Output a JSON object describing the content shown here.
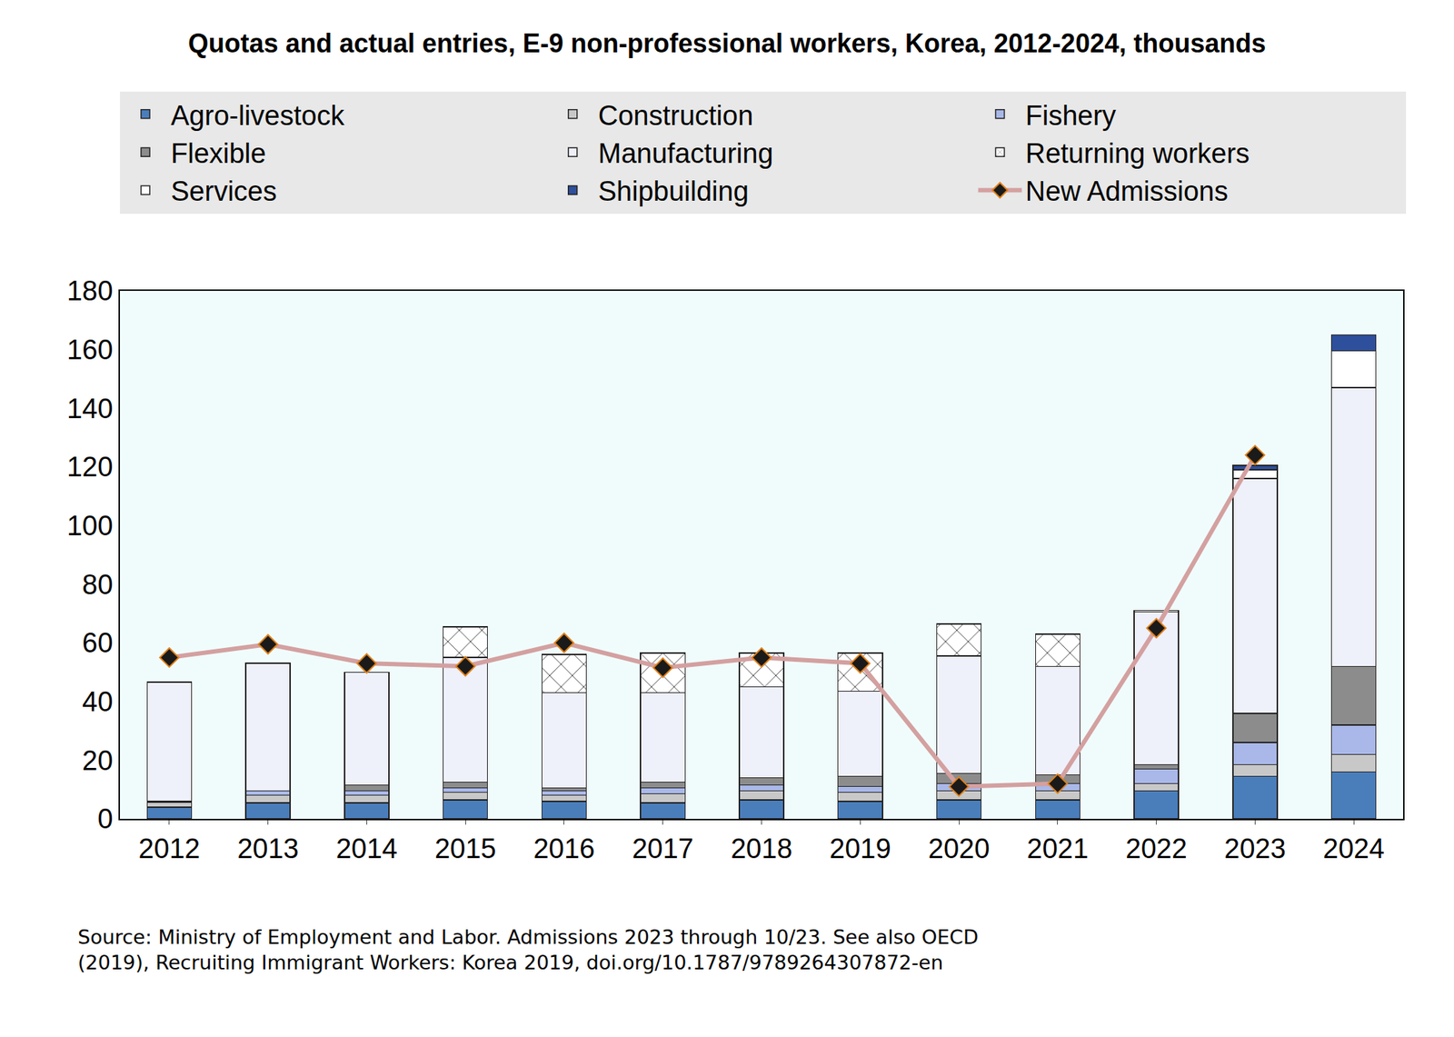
{
  "chart_data": {
    "type": "bar",
    "title": "Quotas and actual entries, E-9 non-professional workers, Korea, 2012-2024, thousands",
    "source": [
      "Source: Ministry of Employment and Labor. Admissions 2023 through 10/23. See also OECD",
      "(2019), Recruiting Immigrant Workers: Korea 2019, doi.org/10.1787/9789264307872-en"
    ],
    "categories": [
      "2012",
      "2013",
      "2014",
      "2015",
      "2016",
      "2017",
      "2018",
      "2019",
      "2020",
      "2021",
      "2022",
      "2023",
      "2024"
    ],
    "stacked": true,
    "grid": false,
    "legend": "top",
    "ylim": [
      0,
      180
    ],
    "yticks": [
      0,
      20,
      40,
      60,
      80,
      100,
      120,
      140,
      160,
      180
    ],
    "series": [
      {
        "name": "Agro-livestock",
        "color": "#4a7ebb",
        "values": [
          4,
          5.5,
          5.5,
          6.5,
          6,
          5.5,
          6.5,
          6,
          6.5,
          6.5,
          9.5,
          14.5,
          16
        ]
      },
      {
        "name": "Construction",
        "color": "#c8c8c8",
        "values": [
          1.6,
          2.5,
          2.5,
          2.5,
          2,
          3,
          3,
          3,
          3,
          3,
          2.5,
          4,
          6
        ]
      },
      {
        "name": "Fishery",
        "color": "#a9b8e8",
        "values": [
          0.3,
          1.5,
          1.5,
          1.5,
          1.5,
          2,
          2,
          2,
          2.5,
          2.5,
          5,
          7.5,
          10
        ]
      },
      {
        "name": "Flexible",
        "color": "#8c8c8c",
        "values": [
          0,
          0,
          2,
          2,
          1,
          2,
          2.5,
          3.5,
          3.5,
          3,
          1.5,
          10,
          20
        ]
      },
      {
        "name": "Manufacturing",
        "color": "#eef0fa",
        "values": [
          40.7,
          43.5,
          38.5,
          42.5,
          32.5,
          30.5,
          31,
          29,
          40,
          37,
          52,
          80,
          95
        ]
      },
      {
        "name": "Returning workers",
        "color": "#ffffff",
        "marker": "x",
        "values": [
          0,
          0,
          0,
          10.5,
          13,
          13.5,
          11.5,
          13,
          11,
          11,
          0,
          0,
          0
        ]
      },
      {
        "name": "Services",
        "color": "#ffffff",
        "values": [
          0,
          0,
          0,
          0,
          0,
          0,
          0,
          0,
          0,
          0,
          0.5,
          3,
          12.5
        ]
      },
      {
        "name": "Shipbuilding",
        "color": "#2e4f9b",
        "values": [
          0,
          0,
          0,
          0,
          0,
          0,
          0,
          0,
          0,
          0,
          0,
          1.5,
          5.5
        ]
      },
      {
        "name": "New Admissions",
        "type": "line",
        "marker": "diamond",
        "color": "#d4a0a0",
        "values": [
          55,
          59.5,
          53,
          52,
          60,
          51.5,
          55,
          53,
          11,
          12,
          65,
          124,
          null
        ]
      }
    ]
  }
}
